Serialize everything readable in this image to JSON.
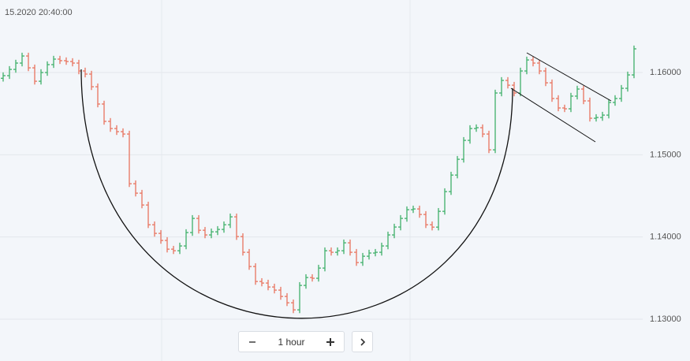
{
  "chart_data": {
    "type": "ohlc",
    "time_label": "15.2020 20:40:00",
    "ylim": [
      1.12492,
      1.16882
    ],
    "yticks": [
      {
        "value": 1.13,
        "label": "1.13000"
      },
      {
        "value": 1.14,
        "label": "1.14000"
      },
      {
        "value": 1.15,
        "label": "1.15000"
      },
      {
        "value": 1.16,
        "label": "1.16000"
      }
    ],
    "grid": true,
    "up_color": "#3fb06a",
    "down_color": "#e8745f",
    "open": [
      1.1593,
      1.15962,
      1.16038,
      1.16115,
      1.16201,
      1.16057,
      1.15894,
      1.16,
      1.16096,
      1.16163,
      1.16144,
      1.16134,
      1.16115,
      1.16019,
      1.15981,
      1.15827,
      1.15617,
      1.15406,
      1.15319,
      1.15281,
      1.15252,
      1.14648,
      1.14533,
      1.14389,
      1.14149,
      1.14044,
      1.13958,
      1.13852,
      1.13833,
      1.13891,
      1.14054,
      1.14226,
      1.14082,
      1.14025,
      1.14063,
      1.14092,
      1.14149,
      1.14245,
      1.14005,
      1.13814,
      1.13641,
      1.13459,
      1.1344,
      1.13392,
      1.13354,
      1.13277,
      1.132,
      1.13114,
      1.13411,
      1.13507,
      1.13498,
      1.13622,
      1.13833,
      1.13814,
      1.13833,
      1.13929,
      1.13814,
      1.13689,
      1.13766,
      1.13805,
      1.13814,
      1.13891,
      1.14025,
      1.14121,
      1.14226,
      1.14332,
      1.14341,
      1.14274,
      1.14149,
      1.1412,
      1.14312,
      1.14552,
      1.14753,
      1.14945,
      1.15175,
      1.15319,
      1.15329,
      1.15252,
      1.1506,
      1.15751,
      1.15904,
      1.15846,
      1.15751,
      1.16019,
      1.16153,
      1.16115,
      1.16019,
      1.15875,
      1.15684,
      1.15569,
      1.15559,
      1.15713,
      1.15799,
      1.15655,
      1.15444,
      1.15453,
      1.15482,
      1.15636,
      1.15684,
      1.15808,
      1.15971
    ],
    "high": [
      1.16002,
      1.16078,
      1.16155,
      1.16241,
      1.16241,
      1.16097,
      1.1604,
      1.16136,
      1.16203,
      1.16203,
      1.16184,
      1.16174,
      1.16155,
      1.16059,
      1.16021,
      1.15867,
      1.15657,
      1.15446,
      1.15359,
      1.15321,
      1.15292,
      1.14688,
      1.14573,
      1.14429,
      1.14189,
      1.14084,
      1.13998,
      1.13892,
      1.13931,
      1.14094,
      1.14266,
      1.14266,
      1.14122,
      1.14103,
      1.14132,
      1.14189,
      1.14285,
      1.14285,
      1.14045,
      1.13854,
      1.13681,
      1.13499,
      1.1348,
      1.13432,
      1.13394,
      1.13317,
      1.1324,
      1.13451,
      1.13547,
      1.13547,
      1.13662,
      1.13873,
      1.13873,
      1.13873,
      1.13969,
      1.13969,
      1.13854,
      1.13806,
      1.13845,
      1.13854,
      1.13931,
      1.14065,
      1.14161,
      1.14266,
      1.14372,
      1.14381,
      1.14381,
      1.14314,
      1.14189,
      1.14352,
      1.14592,
      1.14793,
      1.14985,
      1.15215,
      1.15359,
      1.15369,
      1.15369,
      1.15292,
      1.15791,
      1.15944,
      1.15944,
      1.15886,
      1.16059,
      1.16193,
      1.16193,
      1.16155,
      1.16059,
      1.15915,
      1.15724,
      1.15609,
      1.15753,
      1.15839,
      1.15839,
      1.15695,
      1.15493,
      1.15522,
      1.15676,
      1.15724,
      1.15848,
      1.16011,
      1.16328
    ],
    "low": [
      1.1589,
      1.15922,
      1.15998,
      1.16075,
      1.16017,
      1.15854,
      1.15854,
      1.1596,
      1.16056,
      1.16104,
      1.16094,
      1.16075,
      1.15979,
      1.15941,
      1.15787,
      1.15577,
      1.15366,
      1.15279,
      1.15241,
      1.15212,
      1.14608,
      1.14493,
      1.14349,
      1.14109,
      1.14004,
      1.13918,
      1.13812,
      1.13793,
      1.13793,
      1.13851,
      1.14014,
      1.14042,
      1.13985,
      1.13985,
      1.14023,
      1.14052,
      1.14109,
      1.13965,
      1.13774,
      1.13601,
      1.13419,
      1.134,
      1.13352,
      1.13314,
      1.13237,
      1.1316,
      1.13074,
      1.13074,
      1.13371,
      1.13458,
      1.13458,
      1.13582,
      1.13774,
      1.13774,
      1.13793,
      1.13774,
      1.13649,
      1.13649,
      1.13726,
      1.13765,
      1.13774,
      1.13851,
      1.13985,
      1.14081,
      1.14186,
      1.14292,
      1.14234,
      1.14109,
      1.1408,
      1.1408,
      1.14272,
      1.14512,
      1.14713,
      1.14905,
      1.15135,
      1.15279,
      1.15212,
      1.1502,
      1.1502,
      1.15711,
      1.15806,
      1.15711,
      1.15711,
      1.15979,
      1.16075,
      1.15979,
      1.15835,
      1.15644,
      1.15529,
      1.15519,
      1.15519,
      1.15673,
      1.15615,
      1.15404,
      1.15404,
      1.15413,
      1.15442,
      1.15596,
      1.15644,
      1.15768,
      1.15931
    ],
    "close": [
      1.15962,
      1.16038,
      1.16115,
      1.16201,
      1.16057,
      1.15894,
      1.16,
      1.16096,
      1.16163,
      1.16144,
      1.16134,
      1.16115,
      1.16019,
      1.15981,
      1.15827,
      1.15617,
      1.15406,
      1.15319,
      1.15281,
      1.15252,
      1.14648,
      1.14533,
      1.14389,
      1.14149,
      1.14044,
      1.13958,
      1.13852,
      1.13833,
      1.13891,
      1.14054,
      1.14226,
      1.14082,
      1.14025,
      1.14063,
      1.14092,
      1.14149,
      1.14245,
      1.14005,
      1.13814,
      1.13641,
      1.13459,
      1.1344,
      1.13392,
      1.13354,
      1.13277,
      1.132,
      1.13114,
      1.13411,
      1.13507,
      1.13498,
      1.13622,
      1.13833,
      1.13814,
      1.13833,
      1.13929,
      1.13814,
      1.13689,
      1.13766,
      1.13805,
      1.13814,
      1.13891,
      1.14025,
      1.14121,
      1.14226,
      1.14332,
      1.14341,
      1.14274,
      1.14149,
      1.1412,
      1.14312,
      1.14552,
      1.14753,
      1.14945,
      1.15175,
      1.15319,
      1.15329,
      1.15252,
      1.1506,
      1.15751,
      1.15904,
      1.15846,
      1.15751,
      1.16019,
      1.16153,
      1.16115,
      1.16019,
      1.15875,
      1.15684,
      1.15569,
      1.15559,
      1.15713,
      1.15799,
      1.15655,
      1.15444,
      1.15453,
      1.15482,
      1.15636,
      1.15684,
      1.15808,
      1.15971,
      1.16288
    ]
  },
  "controls": {
    "timeframe": "1 hour"
  }
}
